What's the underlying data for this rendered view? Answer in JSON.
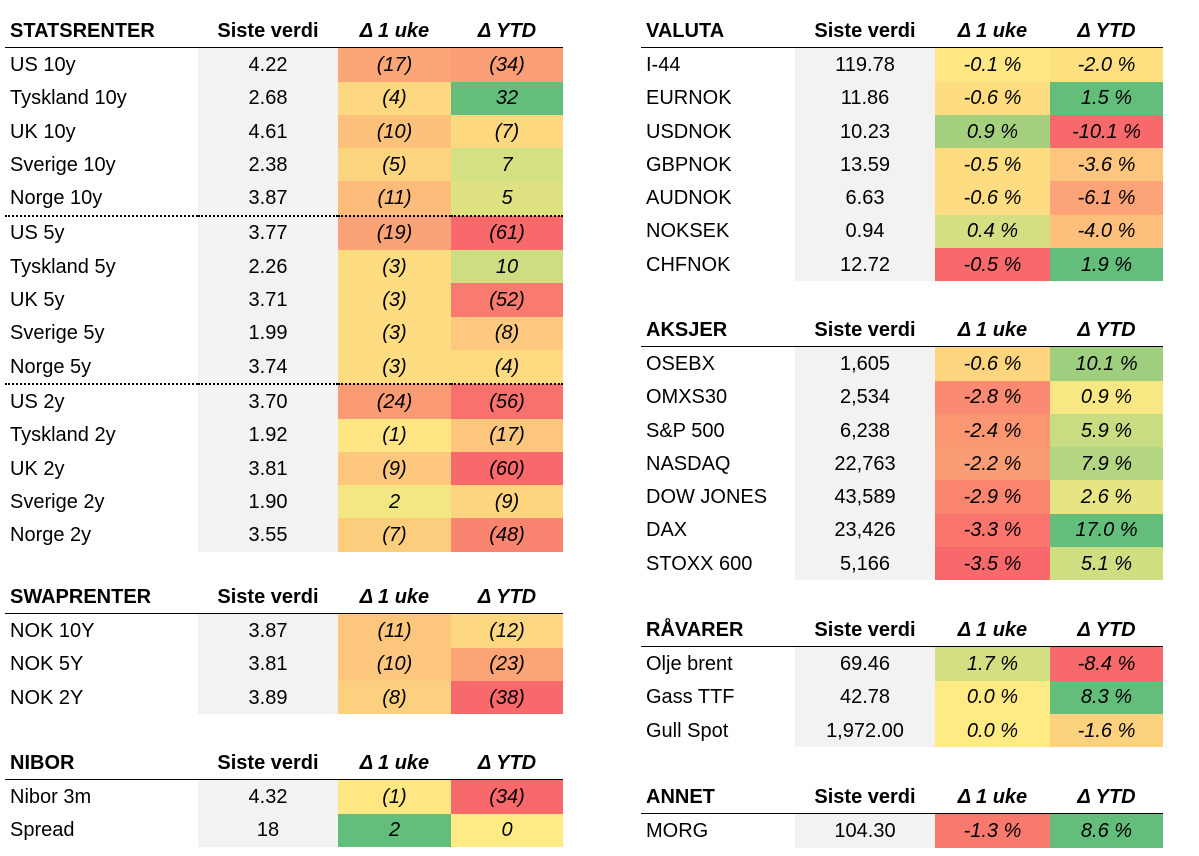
{
  "colors": {
    "value_bg": "#f2f2f2",
    "scale_green": "#63be7b",
    "scale_yellow": "#ffeb84",
    "scale_red": "#f8696b"
  },
  "tables": [
    {
      "id": "statsrenter",
      "title": "STATSRENTER",
      "columns": [
        "Siste verdi",
        "Δ 1 uke",
        "Δ YTD"
      ],
      "rows": [
        {
          "name": "US 10y",
          "value": "4.22",
          "week": "(17)",
          "week_color": "#fca577",
          "ytd": "(34)",
          "ytd_color": "#fa9e75"
        },
        {
          "name": "Tyskland 10y",
          "value": "2.68",
          "week": "(4)",
          "week_color": "#fed880",
          "ytd": "32",
          "ytd_color": "#63be7b"
        },
        {
          "name": "UK 10y",
          "value": "4.61",
          "week": "(10)",
          "week_color": "#fdc17c",
          "ytd": "(7)",
          "ytd_color": "#fed980"
        },
        {
          "name": "Sverige 10y",
          "value": "2.38",
          "week": "(5)",
          "week_color": "#fed57f",
          "ytd": "7",
          "ytd_color": "#d5e082"
        },
        {
          "name": "Norge 10y",
          "value": "3.87",
          "week": "(11)",
          "week_color": "#fdbc7b",
          "ytd": "5",
          "ytd_color": "#dfe283"
        },
        {
          "name": "US 5y",
          "value": "3.77",
          "week": "(19)",
          "week_color": "#fca277",
          "ytd": "(61)",
          "ytd_color": "#f8696b",
          "separator": true
        },
        {
          "name": "Tyskland 5y",
          "value": "2.26",
          "week": "(3)",
          "week_color": "#fedc81",
          "ytd": "10",
          "ytd_color": "#cddd82"
        },
        {
          "name": "UK 5y",
          "value": "3.71",
          "week": "(3)",
          "week_color": "#fedc81",
          "ytd": "(52)",
          "ytd_color": "#f97a6f"
        },
        {
          "name": "Sverige 5y",
          "value": "1.99",
          "week": "(3)",
          "week_color": "#fedc81",
          "ytd": "(8)",
          "ytd_color": "#fec97e"
        },
        {
          "name": "Norge 5y",
          "value": "3.74",
          "week": "(3)",
          "week_color": "#fedc81",
          "ytd": "(4)",
          "ytd_color": "#fedb80"
        },
        {
          "name": "US 2y",
          "value": "3.70",
          "week": "(24)",
          "week_color": "#fa9b74",
          "ytd": "(56)",
          "ytd_color": "#f8716d",
          "separator": true
        },
        {
          "name": "Tyskland 2y",
          "value": "1.92",
          "week": "(1)",
          "week_color": "#ffe583",
          "ytd": "(17)",
          "ytd_color": "#fdc67d"
        },
        {
          "name": "UK 2y",
          "value": "3.81",
          "week": "(9)",
          "week_color": "#fdc77d",
          "ytd": "(60)",
          "ytd_color": "#f8696b"
        },
        {
          "name": "Sverige 2y",
          "value": "1.90",
          "week": "2",
          "week_color": "#f3e783",
          "ytd": "(9)",
          "ytd_color": "#fed47f"
        },
        {
          "name": "Norge 2y",
          "value": "3.55",
          "week": "(7)",
          "week_color": "#fdcd7e",
          "ytd": "(48)",
          "ytd_color": "#f98570"
        }
      ]
    },
    {
      "id": "swap",
      "title": "SWAPRENTER",
      "columns": [
        "Siste verdi",
        "Δ 1 uke",
        "Δ YTD"
      ],
      "rows": [
        {
          "name": "NOK 10Y",
          "value": "3.87",
          "week": "(11)",
          "week_color": "#fdc67d",
          "ytd": "(12)",
          "ytd_color": "#fed880"
        },
        {
          "name": "NOK 5Y",
          "value": "3.81",
          "week": "(10)",
          "week_color": "#fdc87d",
          "ytd": "(23)",
          "ytd_color": "#fba476"
        },
        {
          "name": "NOK 2Y",
          "value": "3.89",
          "week": "(8)",
          "week_color": "#fdd07f",
          "ytd": "(38)",
          "ytd_color": "#f8696b"
        }
      ]
    },
    {
      "id": "nibor",
      "title": "NIBOR",
      "columns": [
        "Siste verdi",
        "Δ 1 uke",
        "Δ YTD"
      ],
      "rows": [
        {
          "name": "Nibor 3m",
          "value": "4.32",
          "week": "(1)",
          "week_color": "#ffe884",
          "ytd": "(34)",
          "ytd_color": "#f8696b"
        },
        {
          "name": "Spread",
          "value": "18",
          "week": "2",
          "week_color": "#63be7b",
          "ytd": "0",
          "ytd_color": "#ffeb84"
        }
      ]
    },
    {
      "id": "valuta",
      "title": "VALUTA",
      "columns": [
        "Siste verdi",
        "Δ 1 uke",
        "Δ YTD"
      ],
      "rows": [
        {
          "name": "I-44",
          "value": "119.78",
          "week": "-0.1 %",
          "week_color": "#ffe784",
          "ytd": "-2.0 %",
          "ytd_color": "#fee081"
        },
        {
          "name": "EURNOK",
          "value": "11.86",
          "week": "-0.6 %",
          "week_color": "#fedc81",
          "ytd": "1.5 %",
          "ytd_color": "#63be7b"
        },
        {
          "name": "USDNOK",
          "value": "10.23",
          "week": "0.9 %",
          "week_color": "#a5d17f",
          "ytd": "-10.1 %",
          "ytd_color": "#f8696b"
        },
        {
          "name": "GBPNOK",
          "value": "13.59",
          "week": "-0.5 %",
          "week_color": "#fedd81",
          "ytd": "-3.6 %",
          "ytd_color": "#fdc57d"
        },
        {
          "name": "AUDNOK",
          "value": "6.63",
          "week": "-0.6 %",
          "week_color": "#fedc81",
          "ytd": "-6.1 %",
          "ytd_color": "#fca477"
        },
        {
          "name": "NOKSEK",
          "value": "0.94",
          "week": "0.4 %",
          "week_color": "#d3df82",
          "ytd": "-4.0 %",
          "ytd_color": "#fdc07c"
        },
        {
          "name": "CHFNOK",
          "value": "12.72",
          "week": "-0.5 %",
          "week_color": "#f8696b",
          "ytd": "1.9 %",
          "ytd_color": "#63be7b"
        }
      ]
    },
    {
      "id": "aksjer",
      "title": "AKSJER",
      "columns": [
        "Siste verdi",
        "Δ 1 uke",
        "Δ YTD"
      ],
      "rows": [
        {
          "name": "OSEBX",
          "value": "1,605",
          "week": "-0.6 %",
          "week_color": "#fed57f",
          "ytd": "10.1 %",
          "ytd_color": "#9fcf7e"
        },
        {
          "name": "OMXS30",
          "value": "2,534",
          "week": "-2.8 %",
          "week_color": "#fa8a71",
          "ytd": "0.9 %",
          "ytd_color": "#f7e883"
        },
        {
          "name": "S&P 500",
          "value": "6,238",
          "week": "-2.4 %",
          "week_color": "#fb9673",
          "ytd": "5.9 %",
          "ytd_color": "#c8dc81"
        },
        {
          "name": "NASDAQ",
          "value": "22,763",
          "week": "-2.2 %",
          "week_color": "#fb9d74",
          "ytd": "7.9 %",
          "ytd_color": "#b5d680"
        },
        {
          "name": "DOW JONES",
          "value": "43,589",
          "week": "-2.9 %",
          "week_color": "#fa8670",
          "ytd": "2.6 %",
          "ytd_color": "#e6e483"
        },
        {
          "name": "DAX",
          "value": "23,426",
          "week": "-3.3 %",
          "week_color": "#f9756e",
          "ytd": "17.0 %",
          "ytd_color": "#63be7b"
        },
        {
          "name": "STOXX 600",
          "value": "5,166",
          "week": "-3.5 %",
          "week_color": "#f8696b",
          "ytd": "5.1 %",
          "ytd_color": "#d0de82"
        }
      ]
    },
    {
      "id": "ravarer",
      "title": "RÅVARER",
      "columns": [
        "Siste verdi",
        "Δ 1 uke",
        "Δ YTD"
      ],
      "rows": [
        {
          "name": "Olje brent",
          "value": "69.46",
          "week": "1.7 %",
          "week_color": "#d4df82",
          "ytd": "-8.4 %",
          "ytd_color": "#f8696b"
        },
        {
          "name": "Gass TTF",
          "value": "42.78",
          "week": "0.0 %",
          "week_color": "#ffeb84",
          "ytd": "8.3 %",
          "ytd_color": "#63be7b"
        },
        {
          "name": "Gull Spot",
          "value": "1,972.00",
          "week": "0.0 %",
          "week_color": "#ffeb84",
          "ytd": "-1.6 %",
          "ytd_color": "#fdd27f"
        }
      ]
    },
    {
      "id": "annet",
      "title": "ANNET",
      "columns": [
        "Siste verdi",
        "Δ 1 uke",
        "Δ YTD"
      ],
      "rows": [
        {
          "name": "MORG",
          "value": "104.30",
          "week": "-1.3 %",
          "week_color": "#f8796e",
          "ytd": "8.6 %",
          "ytd_color": "#63be7b"
        }
      ]
    }
  ]
}
